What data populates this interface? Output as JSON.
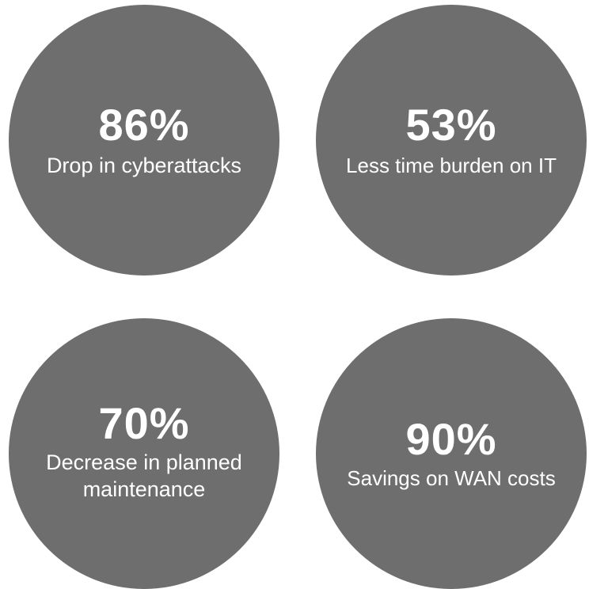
{
  "stats": [
    {
      "value": "86%",
      "label": "Drop in cyberattacks"
    },
    {
      "value": "53%",
      "label": "Less time burden on IT"
    },
    {
      "value": "70%",
      "label_line1": "Decrease in planned",
      "label_line2": "maintenance"
    },
    {
      "value": "90%",
      "label": "Savings on WAN costs"
    }
  ],
  "colors": {
    "circle": "#6e6e6e",
    "text": "#ffffff",
    "background": "#ffffff"
  }
}
